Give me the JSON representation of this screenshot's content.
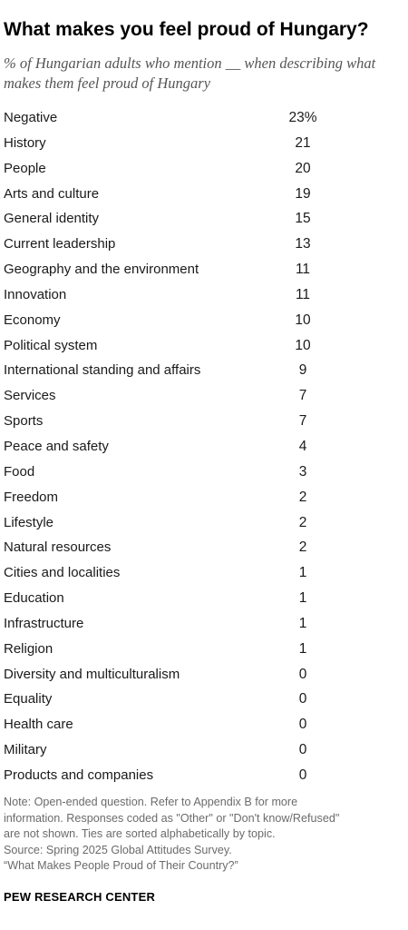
{
  "title": "What makes you feel proud of Hungary?",
  "subtitle": "% of Hungarian adults who mention __ when describing what makes them feel proud of Hungary",
  "chart_data": {
    "type": "table",
    "rows": [
      {
        "label": "Negative",
        "value": "23%"
      },
      {
        "label": "History",
        "value": "21"
      },
      {
        "label": "People",
        "value": "20"
      },
      {
        "label": "Arts and culture",
        "value": "19"
      },
      {
        "label": "General identity",
        "value": "15"
      },
      {
        "label": "Current leadership",
        "value": "13"
      },
      {
        "label": "Geography and the environment",
        "value": "11"
      },
      {
        "label": "Innovation",
        "value": "11"
      },
      {
        "label": "Economy",
        "value": "10"
      },
      {
        "label": "Political system",
        "value": "10"
      },
      {
        "label": "International standing and affairs",
        "value": "9"
      },
      {
        "label": "Services",
        "value": "7"
      },
      {
        "label": "Sports",
        "value": "7"
      },
      {
        "label": "Peace and safety",
        "value": "4"
      },
      {
        "label": "Food",
        "value": "3"
      },
      {
        "label": "Freedom",
        "value": "2"
      },
      {
        "label": "Lifestyle",
        "value": "2"
      },
      {
        "label": "Natural resources",
        "value": "2"
      },
      {
        "label": "Cities and localities",
        "value": "1"
      },
      {
        "label": "Education",
        "value": "1"
      },
      {
        "label": "Infrastructure",
        "value": "1"
      },
      {
        "label": "Religion",
        "value": "1"
      },
      {
        "label": "Diversity and multiculturalism",
        "value": "0"
      },
      {
        "label": "Equality",
        "value": "0"
      },
      {
        "label": "Health care",
        "value": "0"
      },
      {
        "label": "Military",
        "value": "0"
      },
      {
        "label": "Products and companies",
        "value": "0"
      }
    ]
  },
  "notes": {
    "lines": [
      "Note: Open-ended question. Refer to Appendix B for more",
      "information. Responses coded as \"Other\" or \"Don't know/Refused\"",
      "are not shown. Ties are sorted alphabetically by topic.",
      "Source: Spring 2025 Global Attitudes Survey.",
      "“What Makes People Proud of Their Country?”"
    ]
  },
  "brand": "PEW RESEARCH CENTER"
}
